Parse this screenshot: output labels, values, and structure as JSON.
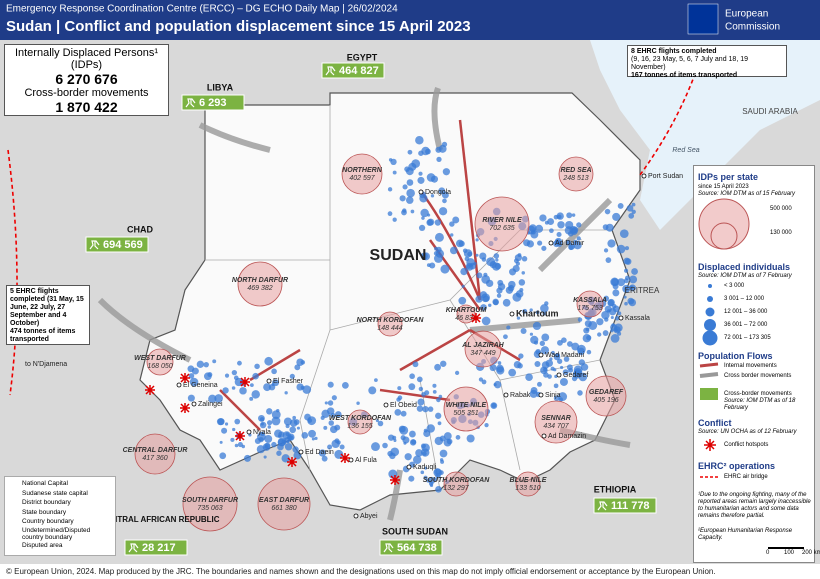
{
  "header": {
    "subtitle": "Emergency Response Coordination Centre (ERCC) – DG ECHO Daily Map | 26/02/2024",
    "title": "Sudan | Conflict and population displacement since 15 April 2023",
    "logo_line1": "European",
    "logo_line2": "Commission"
  },
  "summary": {
    "idp_label": "Internally Displaced Persons¹ (IDPs)",
    "idp_value": "6 270 676",
    "cross_label": "Cross-border movements",
    "cross_value": "1 870 422"
  },
  "countries": [
    {
      "name": "LIBYA",
      "value": "6 293"
    },
    {
      "name": "EGYPT",
      "value": "464 827"
    },
    {
      "name": "CHAD",
      "value": "694 569"
    },
    {
      "name": "CENTRAL AFRICAN REPUBLIC",
      "value": "28 217"
    },
    {
      "name": "SOUTH SUDAN",
      "value": "564 738"
    },
    {
      "name": "ETHIOPIA",
      "value": "111 778"
    }
  ],
  "places": [
    "SUDAN",
    "ERITREA",
    "SAUDI ARABIA",
    "Red Sea"
  ],
  "states": [
    {
      "name": "NORTHERN",
      "value": "402 597"
    },
    {
      "name": "RIVER NILE",
      "value": "702 635"
    },
    {
      "name": "RED SEA",
      "value": "248 513"
    },
    {
      "name": "NORTH DARFUR",
      "value": "469 382"
    },
    {
      "name": "KASSALA",
      "value": "175 753"
    },
    {
      "name": "KHARTOUM",
      "value": "46 834"
    },
    {
      "name": "NORTH KORDOFAN",
      "value": "148 444"
    },
    {
      "name": "AL JAZIRAH",
      "value": "347 449"
    },
    {
      "name": "WEST DARFUR",
      "value": "168 050"
    },
    {
      "name": "GEDAREF",
      "value": "405 196"
    },
    {
      "name": "WHITE NILE",
      "value": "505 351"
    },
    {
      "name": "WEST KORDOFAN",
      "value": "136 155"
    },
    {
      "name": "SENNAR",
      "value": "434 707"
    },
    {
      "name": "CENTRAL DARFUR",
      "value": "417 360"
    },
    {
      "name": "SOUTH KORDOFAN",
      "value": "132 297"
    },
    {
      "name": "BLUE NILE",
      "value": "133 510"
    },
    {
      "name": "SOUTH DARFUR",
      "value": "735 063"
    },
    {
      "name": "EAST DARFUR",
      "value": "661 380"
    }
  ],
  "cities": [
    "Dongola",
    "Port Sudan",
    "Ad Damir",
    "Khartoum",
    "Kassala",
    "Wad Madani",
    "Gedaref",
    "Sinja",
    "Rabak",
    "Ad Damazin",
    "El Fasher",
    "El Geneina",
    "Zalingei",
    "Nyala",
    "Ed Daein",
    "El Obeid",
    "Al Fula",
    "Kaduqli",
    "Abyei",
    "to N'Djamena"
  ],
  "flights_east": {
    "line1": "8 EHRC flights completed",
    "line2": "(9, 16, 23 May, 5, 6, 7 July and 18, 19 November)",
    "line3": "167 tonnes of items transported"
  },
  "flights_west": {
    "line1": "5 EHRC flights completed (31 May, 15 June, 22 July, 27 September and 4 October)",
    "line2": "474 tonnes of items transported"
  },
  "map_legend": [
    "National Capital",
    "Sudanese state capital",
    "District boundary",
    "State boundary",
    "Country boundary",
    "Undetermined/Disputed country boundary",
    "Disputed area"
  ],
  "legend": {
    "idp_title": "IDPs per state",
    "idp_since": "since 15 April 2023",
    "idp_source": "Source: IOM DTM as of 15 February",
    "idp_sizes": [
      "500 000",
      "130 000"
    ],
    "displaced_title": "Displaced individuals",
    "displaced_source": "Source: IOM DTM as of 7 February",
    "displaced_classes": [
      "< 3 000",
      "3 001 – 12 000",
      "12 001 – 36 000",
      "36 001 – 72 000",
      "72 001 – 173 305"
    ],
    "flows_title": "Population Flows",
    "flows": [
      "Internal movements",
      "Cross border movements",
      "Cross-border movements"
    ],
    "flows_source": "Source: IOM DTM as of 18 February",
    "conflict_title": "Conflict",
    "conflict_source": "Source: UN OCHA as of 12 February",
    "conflict_item": "Conflict hotspots",
    "ehrc_title": "EHRC² operations",
    "ehrc_item": "EHRC air bridge",
    "note1": "¹Due to the ongoing fighting, many of the reported areas remain largely inaccessible to humanitarian actors and some data remains therefore partial.",
    "note2": "²European Humanitarian Response Capacity.",
    "scale": [
      "0",
      "100",
      "200 km"
    ]
  },
  "footer": "© European Union, 2024. Map produced by the JRC. The boundaries and names shown and the designations used on this map do not imply official endorsement or acceptance by the European Union."
}
